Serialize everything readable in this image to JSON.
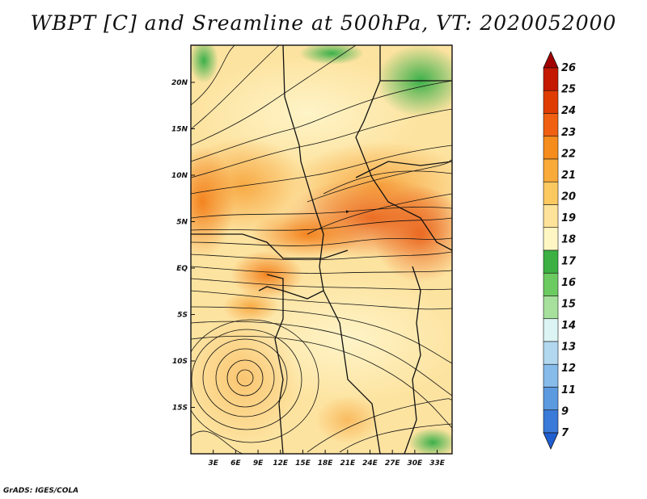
{
  "title": "WBPT [C] and Sreamline at 500hPa, VT: 2020052000",
  "credit": "GrADS: IGES/COLA",
  "map": {
    "lon_range": [
      0,
      35
    ],
    "lat_range": [
      -20,
      24
    ],
    "x_ticks": [
      "3E",
      "6E",
      "9E",
      "12E",
      "15E",
      "18E",
      "21E",
      "24E",
      "27E",
      "30E",
      "33E"
    ],
    "y_ticks": [
      "20N",
      "15N",
      "10N",
      "5N",
      "EQ",
      "5S",
      "10S",
      "15S"
    ]
  },
  "colorbar": {
    "labels": [
      "26",
      "25",
      "24",
      "23",
      "22",
      "21",
      "20",
      "19",
      "18",
      "17",
      "16",
      "15",
      "14",
      "13",
      "12",
      "11",
      "9",
      "7"
    ],
    "colors": [
      "#a00000",
      "#c41800",
      "#e03c00",
      "#f06010",
      "#f58c1c",
      "#f9aa38",
      "#fcc860",
      "#fde29a",
      "#fef7c4",
      "#3cb043",
      "#6ccb60",
      "#a6e09c",
      "#dcf4f4",
      "#b2d8f0",
      "#86bbea",
      "#5c9ae0",
      "#3a7ad8",
      "#1f5ed0"
    ]
  }
}
